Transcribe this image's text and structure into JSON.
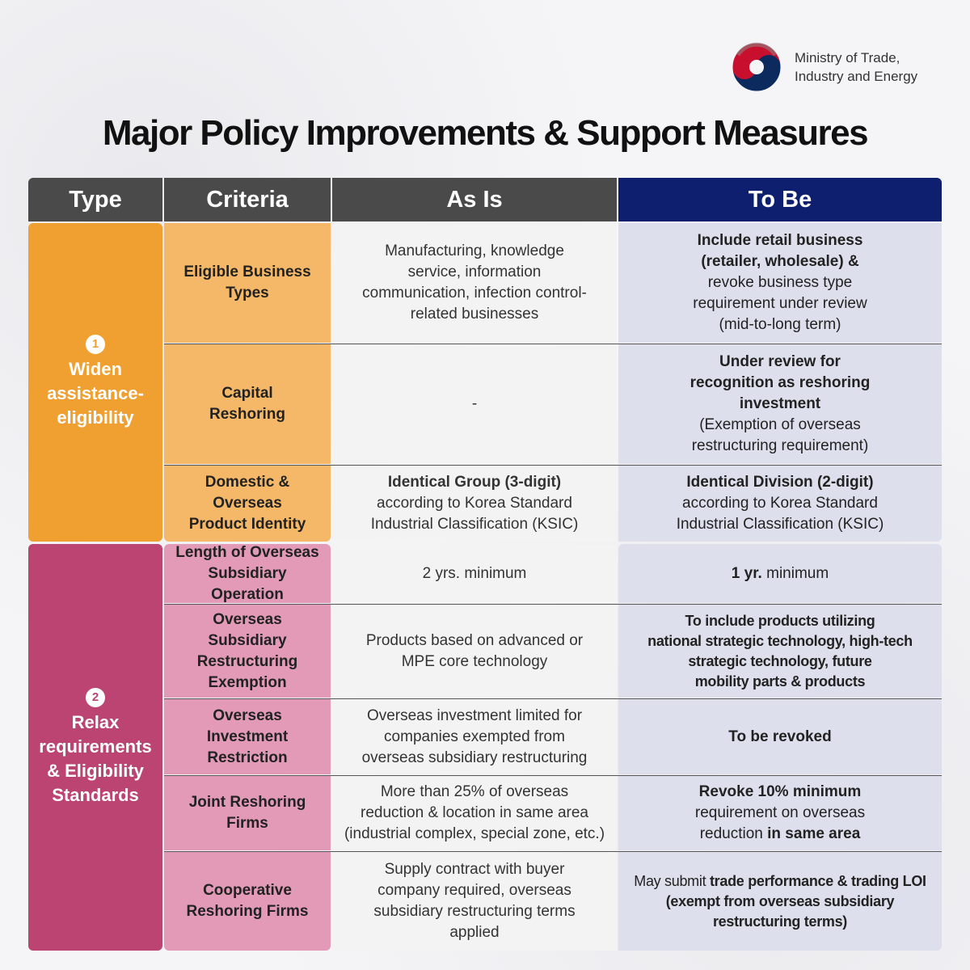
{
  "ministry": {
    "line1": "Ministry of Trade,",
    "line2": "Industry and Energy"
  },
  "title": "Major Policy Improvements & Support Measures",
  "headers": {
    "type": "Type",
    "criteria": "Criteria",
    "as_is": "As Is",
    "to_be": "To Be"
  },
  "colors": {
    "type1": "#f0a030",
    "type2": "#bb4472",
    "to_be_header": "#0d1f6e",
    "header": "#4a4a4a"
  },
  "types": [
    {
      "num": "1",
      "label": [
        "Widen",
        "assistance-",
        "eligibility"
      ]
    },
    {
      "num": "2",
      "label": [
        "Relax",
        "requirements",
        "& Eligibility",
        "Standards"
      ]
    }
  ],
  "rows": [
    {
      "criteria": [
        "Eligible Business",
        "Types"
      ],
      "as_is": [
        "Manufacturing, knowledge",
        "service, information",
        "communication, infection control-",
        "related businesses"
      ],
      "to_be": [
        "Include retail business",
        "(retailer, wholesale) &",
        "revoke business type",
        "requirement under review",
        "(mid-to-long term)"
      ]
    },
    {
      "criteria": [
        "Capital",
        "Reshoring"
      ],
      "as_is": [
        "-"
      ],
      "to_be": [
        "Under review for",
        "recognition as reshoring",
        "investment",
        "(Exemption of overseas",
        "restructuring requirement)"
      ]
    },
    {
      "criteria": [
        "Domestic & Overseas",
        "Product Identity"
      ],
      "as_is": [
        "Identical Group (3-digit)",
        "according to Korea Standard",
        "Industrial Classification (KSIC)"
      ],
      "to_be": [
        "Identical Division (2-digit)",
        "according to Korea Standard",
        "Industrial Classification (KSIC)"
      ]
    },
    {
      "criteria": [
        "Length of Overseas",
        "Subsidiary Operation"
      ],
      "as_is": [
        "2 yrs. minimum"
      ],
      "to_be": [
        "1 yr.",
        " minimum"
      ]
    },
    {
      "criteria": [
        "Overseas Subsidiary",
        "Restructuring",
        "Exemption"
      ],
      "as_is": [
        "Products based on advanced or",
        "MPE core technology"
      ],
      "to_be": [
        "To include products utilizing",
        "national strategic technology, high-tech",
        "strategic technology, future",
        "mobility parts & products"
      ]
    },
    {
      "criteria": [
        "Overseas Investment",
        "Restriction"
      ],
      "as_is": [
        "Overseas investment limited for",
        "companies exempted from",
        "overseas subsidiary restructuring"
      ],
      "to_be": [
        "To be revoked"
      ]
    },
    {
      "criteria": [
        "Joint Reshoring",
        "Firms"
      ],
      "as_is": [
        "More than 25% of overseas",
        "reduction & location in same area",
        "(industrial complex, special zone, etc.)"
      ],
      "to_be": [
        "Revoke 10% minimum",
        "requirement on overseas",
        "reduction ",
        "in same area"
      ]
    },
    {
      "criteria": [
        "Cooperative",
        "Reshoring Firms"
      ],
      "as_is": [
        "Supply contract with buyer",
        "company required, overseas",
        "subsidiary restructuring terms",
        "applied"
      ],
      "to_be": [
        "May submit ",
        "trade performance & trading LOI",
        "(exempt from overseas subsidiary",
        "restructuring terms)"
      ]
    }
  ]
}
